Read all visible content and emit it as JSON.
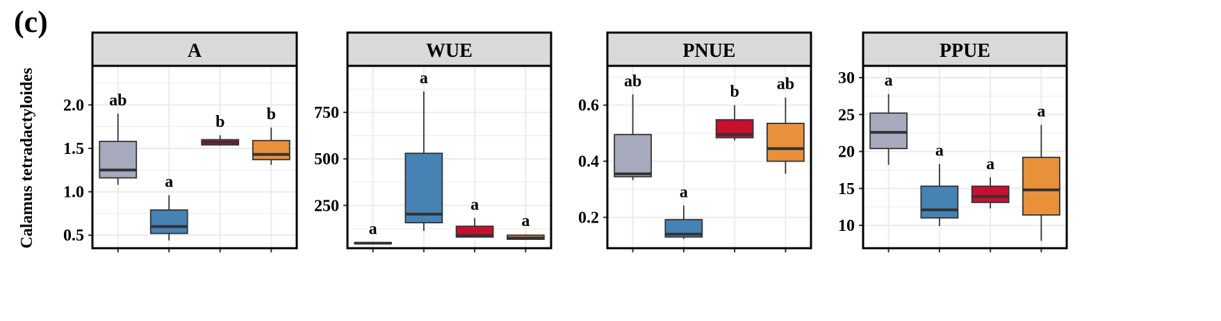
{
  "figure": {
    "panel_label": "(c)",
    "ylabel": "Calamus tetradactyloides"
  },
  "colors": {
    "group_fills": [
      "#a7a9bc",
      "#4682b4",
      "#c8102e",
      "#e8913a"
    ],
    "strip_fill": "#d9d9d9",
    "grid": "#ebebeb",
    "frame": "#000000",
    "box_stroke": "#333333"
  },
  "chart_data": [
    {
      "type": "box",
      "title": "A",
      "ylim": [
        0.35,
        2.45
      ],
      "yticks": [
        0.5,
        1.0,
        1.5,
        2.0
      ],
      "ytick_labels": [
        "0.5",
        "1.0",
        "1.5",
        "2.0"
      ],
      "minor_yticks": [
        0.75,
        1.25,
        1.75,
        2.25
      ],
      "boxes": [
        {
          "q1": 1.16,
          "median": 1.25,
          "q3": 1.58,
          "whisker_low": 1.08,
          "whisker_high": 1.9,
          "letter": "ab"
        },
        {
          "q1": 0.52,
          "median": 0.6,
          "q3": 0.79,
          "whisker_low": 0.44,
          "whisker_high": 0.96,
          "letter": "a"
        },
        {
          "q1": 1.54,
          "median": 1.57,
          "q3": 1.6,
          "whisker_low": 1.53,
          "whisker_high": 1.65,
          "letter": "b"
        },
        {
          "q1": 1.37,
          "median": 1.43,
          "q3": 1.59,
          "whisker_low": 1.31,
          "whisker_high": 1.74,
          "letter": "b"
        }
      ]
    },
    {
      "type": "box",
      "title": "WUE",
      "ylim": [
        20,
        1000
      ],
      "yticks": [
        250,
        500,
        750
      ],
      "ytick_labels": [
        "250",
        "500",
        "750"
      ],
      "minor_yticks": [
        125,
        375,
        625,
        875
      ],
      "boxes": [
        {
          "q1": 45,
          "median": 47,
          "q3": 50,
          "whisker_low": 44,
          "whisker_high": 52,
          "letter": "a"
        },
        {
          "q1": 157,
          "median": 203,
          "q3": 530,
          "whisker_low": 113,
          "whisker_high": 862,
          "letter": "a"
        },
        {
          "q1": 80,
          "median": 88,
          "q3": 138,
          "whisker_low": 78,
          "whisker_high": 182,
          "letter": "a"
        },
        {
          "q1": 68,
          "median": 75,
          "q3": 90,
          "whisker_low": 64,
          "whisker_high": 94,
          "letter": "a"
        }
      ]
    },
    {
      "type": "box",
      "title": "PNUE",
      "ylim": [
        0.09,
        0.74
      ],
      "yticks": [
        0.2,
        0.4,
        0.6
      ],
      "ytick_labels": [
        "0.2",
        "0.4",
        "0.6"
      ],
      "minor_yticks": [
        0.3,
        0.5,
        0.7
      ],
      "boxes": [
        {
          "q1": 0.345,
          "median": 0.355,
          "q3": 0.495,
          "whisker_low": 0.333,
          "whisker_high": 0.638,
          "letter": "ab"
        },
        {
          "q1": 0.13,
          "median": 0.14,
          "q3": 0.192,
          "whisker_low": 0.123,
          "whisker_high": 0.242,
          "letter": "a"
        },
        {
          "q1": 0.484,
          "median": 0.495,
          "q3": 0.548,
          "whisker_low": 0.474,
          "whisker_high": 0.6,
          "letter": "b"
        },
        {
          "q1": 0.4,
          "median": 0.445,
          "q3": 0.535,
          "whisker_low": 0.355,
          "whisker_high": 0.627,
          "letter": "ab"
        }
      ]
    },
    {
      "type": "box",
      "title": "PPUE",
      "ylim": [
        6.9,
        31.6
      ],
      "yticks": [
        10,
        15,
        20,
        25,
        30
      ],
      "ytick_labels": [
        "10",
        "15",
        "20",
        "25",
        "30"
      ],
      "minor_yticks": [
        12.5,
        17.5,
        22.5,
        27.5
      ],
      "boxes": [
        {
          "q1": 20.4,
          "median": 22.6,
          "q3": 25.2,
          "whisker_low": 18.2,
          "whisker_high": 27.8,
          "letter": "a"
        },
        {
          "q1": 11.0,
          "median": 12.1,
          "q3": 15.3,
          "whisker_low": 9.9,
          "whisker_high": 18.3,
          "letter": "a"
        },
        {
          "q1": 13.1,
          "median": 13.9,
          "q3": 15.3,
          "whisker_low": 12.3,
          "whisker_high": 16.5,
          "letter": "a"
        },
        {
          "q1": 11.4,
          "median": 14.8,
          "q3": 19.2,
          "whisker_low": 7.9,
          "whisker_high": 23.6,
          "letter": "a"
        }
      ]
    }
  ]
}
